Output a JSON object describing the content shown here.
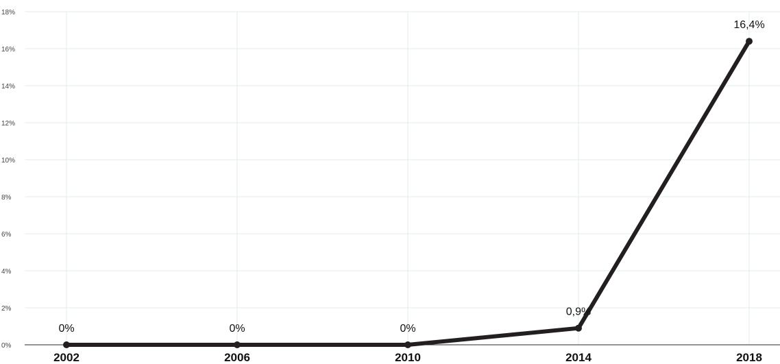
{
  "chart_data": {
    "type": "line",
    "title": "",
    "xlabel": "",
    "ylabel": "",
    "categories": [
      "2002",
      "2006",
      "2010",
      "2014",
      "2018"
    ],
    "series": [
      {
        "values": [
          0,
          0,
          0,
          0.9,
          16.4
        ],
        "data_labels": [
          "0%",
          "0%",
          "0%",
          "0,9%",
          "16,4%"
        ]
      }
    ],
    "ylim": [
      0,
      18
    ],
    "y_ticks": [
      0,
      2,
      4,
      6,
      8,
      10,
      12,
      14,
      16,
      18
    ],
    "y_tick_labels": [
      "0%",
      "2%",
      "4%",
      "6%",
      "8%",
      "10%",
      "12%",
      "14%",
      "16%",
      "18%"
    ],
    "grid": true,
    "legend": "none",
    "colors": {
      "line": "#231f20",
      "grid": "#e2ebf0"
    }
  }
}
